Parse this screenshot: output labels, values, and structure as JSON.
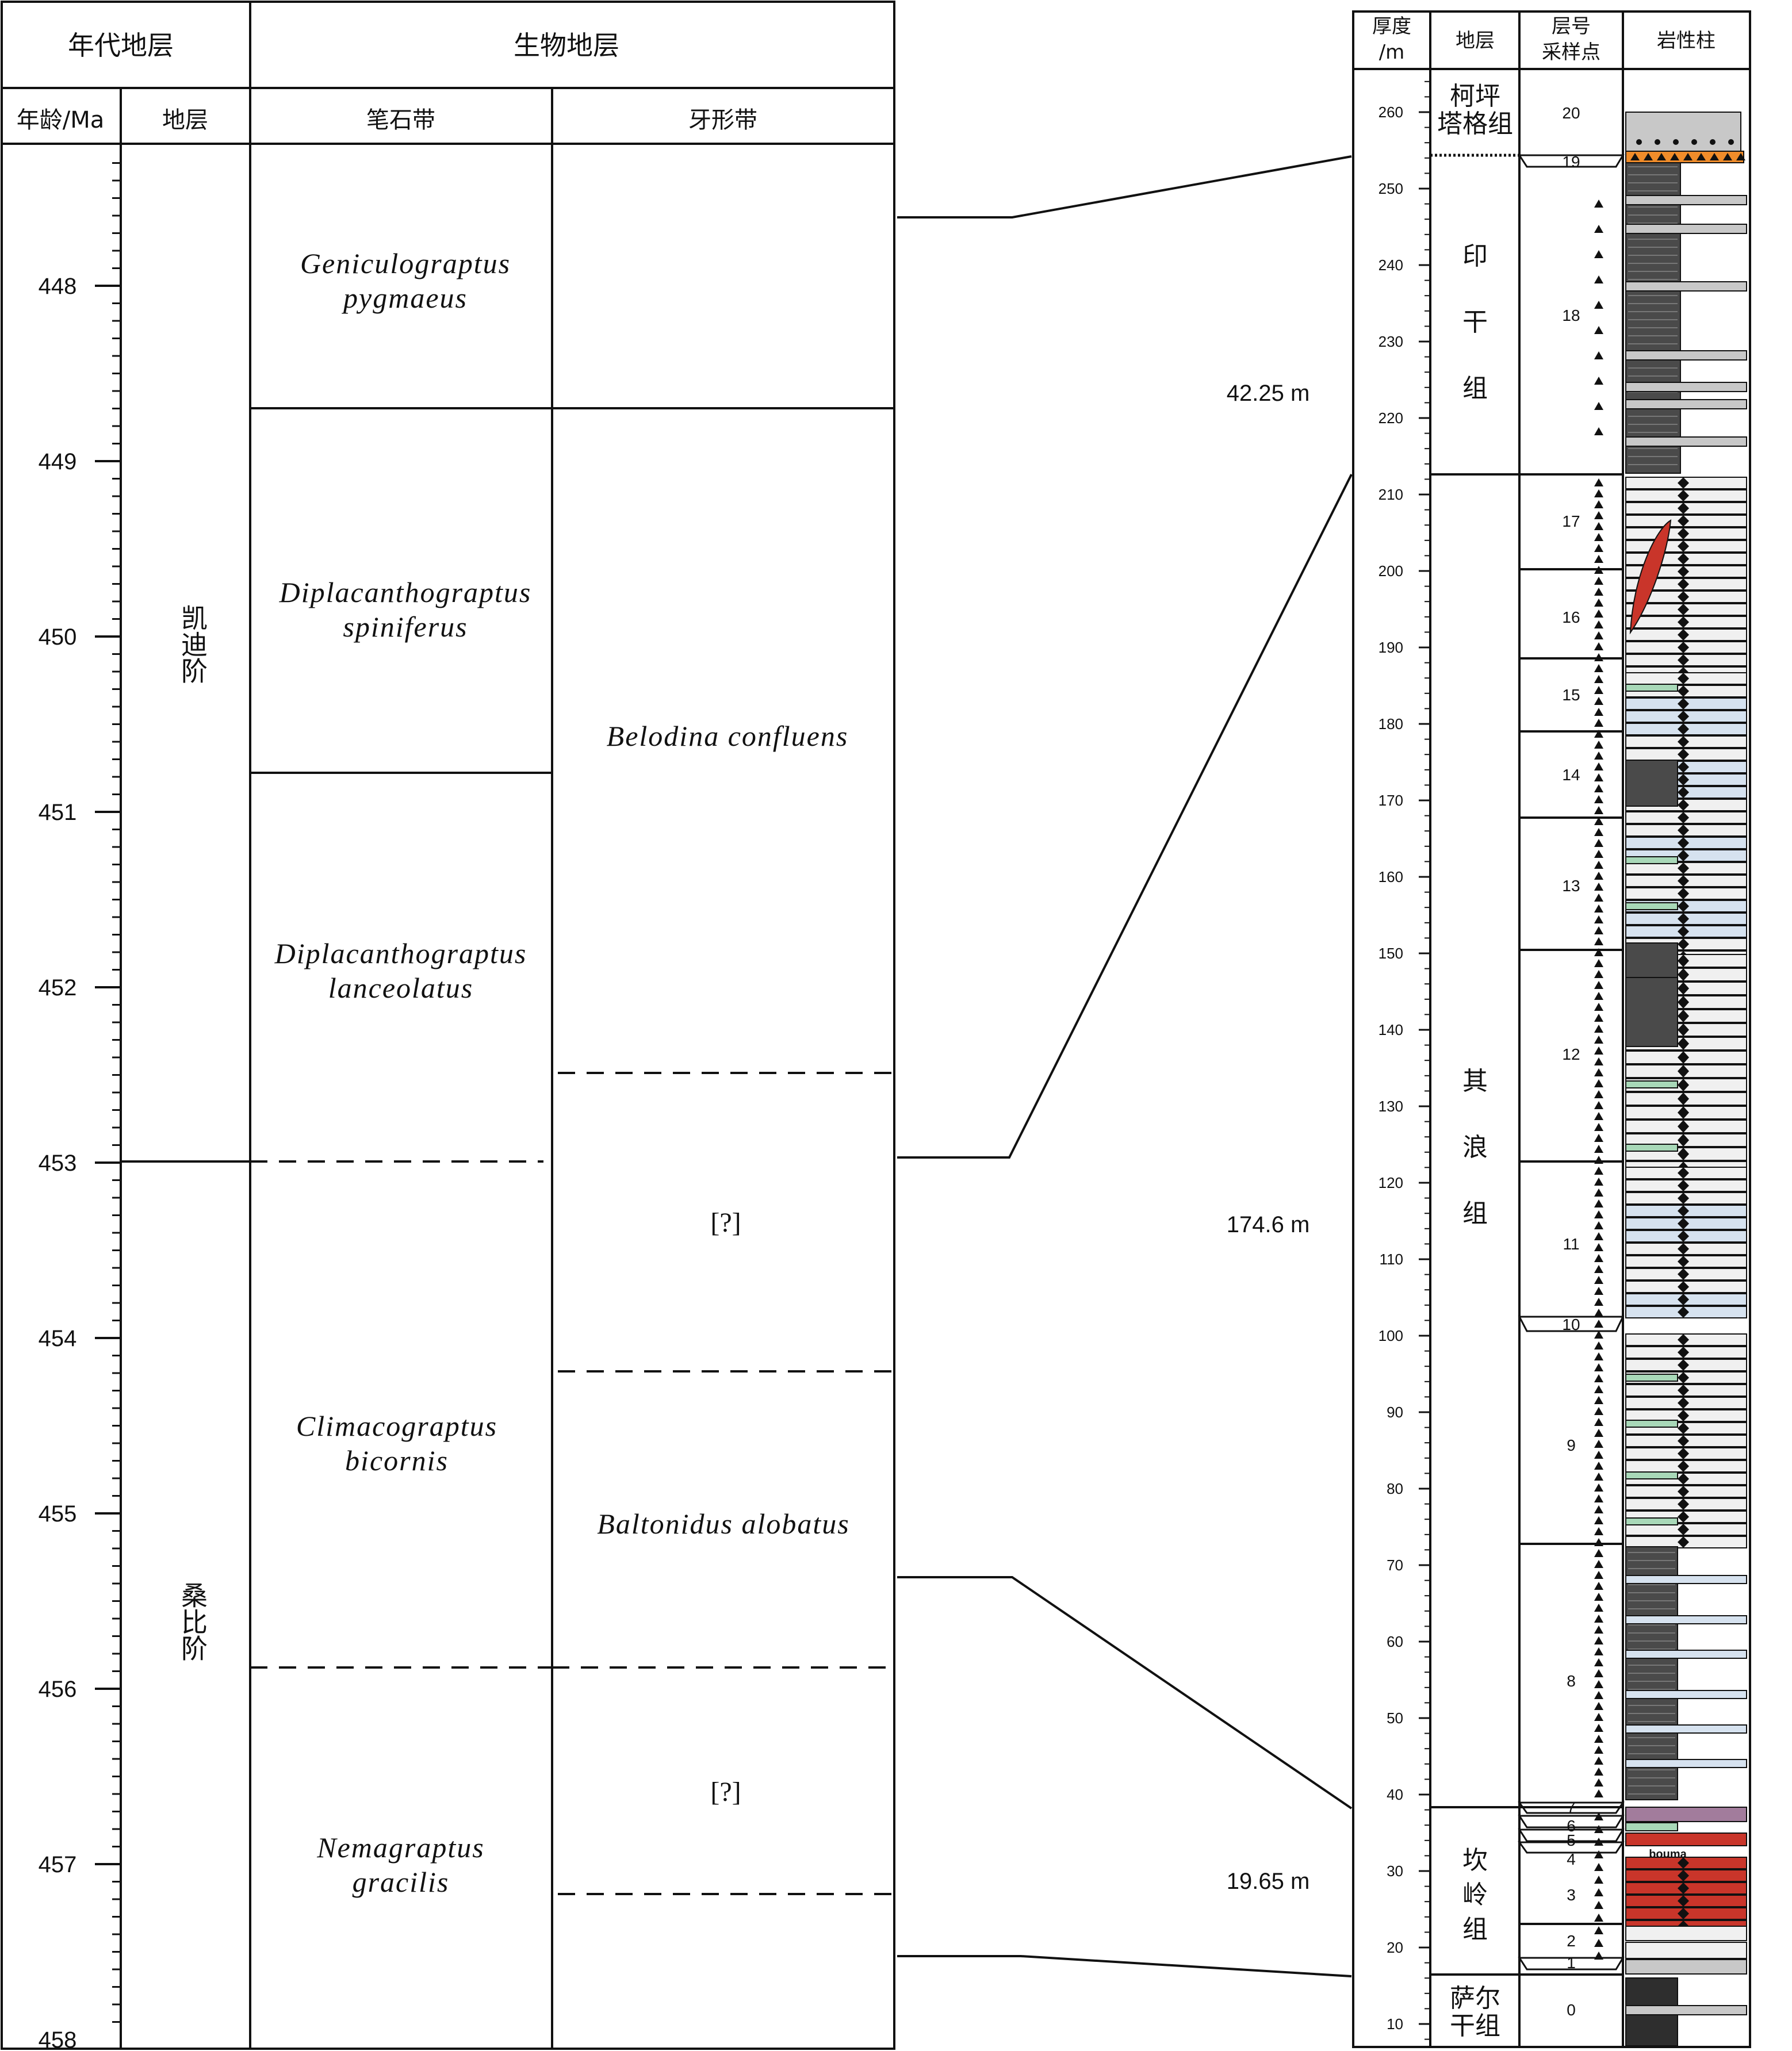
{
  "left_table": {
    "header_chrono": "年代地层",
    "header_bio": "生物地层",
    "sub_age": "年龄/Ma",
    "sub_strata": "地层",
    "sub_graptolite": "笔石带",
    "sub_conodont": "牙形带",
    "age_ticks": [
      "448",
      "449",
      "450",
      "451",
      "452",
      "453",
      "454",
      "455",
      "456",
      "457",
      "458"
    ],
    "stages": [
      {
        "label": "凯迪阶"
      },
      {
        "label": "桑比阶"
      }
    ],
    "graptolite_zones": [
      {
        "line1": "Geniculograptus",
        "line2": "pygmaeus"
      },
      {
        "line1": "Diplacanthograptus",
        "line2": "spiniferus"
      },
      {
        "line1": "Diplacanthograptus",
        "line2": "lanceolatus"
      },
      {
        "line1": "Climacograptus",
        "line2": "bicornis"
      },
      {
        "line1": "Nemagraptus",
        "line2": "gracilis"
      }
    ],
    "conodont_zones": [
      {
        "label": "Belodina confluens"
      },
      {
        "label": "[?]"
      },
      {
        "label": "Baltonidus alobatus"
      },
      {
        "label": "[?]"
      }
    ]
  },
  "thicknesses": [
    "42.25 m",
    "174.6 m",
    "19.65 m"
  ],
  "column": {
    "header_thickness_1": "厚度",
    "header_thickness_2": "/m",
    "header_strata": "地层",
    "header_bed_1": "层号",
    "header_bed_2": "采样点",
    "header_litho": "岩性柱",
    "scale_ticks": [
      "260",
      "250",
      "240",
      "230",
      "220",
      "210",
      "200",
      "190",
      "180",
      "170",
      "160",
      "150",
      "140",
      "130",
      "120",
      "110",
      "100",
      "90",
      "80",
      "70",
      "60",
      "50",
      "40",
      "30",
      "20",
      "10"
    ],
    "formations": [
      {
        "line1": "柯坪",
        "line2": "塔格组"
      },
      {
        "chars": [
          "印",
          "干",
          "组"
        ]
      },
      {
        "chars": [
          "其",
          "浪",
          "组"
        ]
      },
      {
        "chars": [
          "坎",
          "岭",
          "组"
        ]
      },
      {
        "line1": "萨尔",
        "line2": "干组"
      }
    ],
    "beds": [
      "20",
      "19",
      "18",
      "17",
      "16",
      "15",
      "14",
      "13",
      "12",
      "11",
      "10",
      "9",
      "8",
      "7",
      "6",
      "5",
      "4",
      "3",
      "2",
      "1",
      "0"
    ],
    "bouma_label": "bouma"
  },
  "colors": {
    "line": "#111111",
    "limestone": "#f0f0f0",
    "blue_limestone": "#d6e2ef",
    "shale": "#4a4a4a",
    "green_marl": "#a8d8b8",
    "red_limestone": "#c9352a",
    "orange_bed": "#f08c2a",
    "purple_bed": "#a27c9c",
    "sandstone": "#c8c8c8"
  }
}
